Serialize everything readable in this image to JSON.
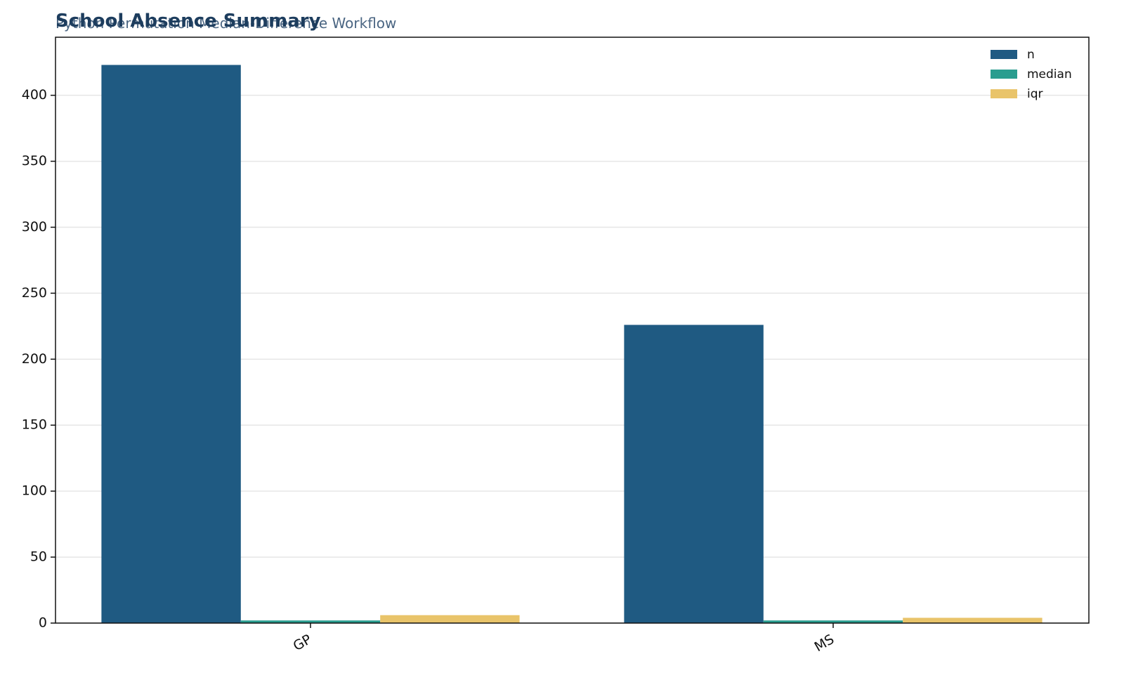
{
  "chart_data": {
    "type": "bar",
    "title": "School Absence Summary",
    "subtitle": "Python Permutation Median-Difference Workflow",
    "categories": [
      "GP",
      "MS"
    ],
    "series": [
      {
        "name": "n",
        "color": "#1f5a82",
        "values": [
          423,
          226
        ]
      },
      {
        "name": "median",
        "color": "#2a9d8f",
        "values": [
          2,
          2
        ]
      },
      {
        "name": "iqr",
        "color": "#e9c46a",
        "values": [
          6,
          4
        ]
      }
    ],
    "ylim": [
      0,
      444
    ],
    "yticks": [
      0,
      50,
      100,
      150,
      200,
      250,
      300,
      350,
      400
    ],
    "grid": true,
    "legend": "upper-right"
  }
}
